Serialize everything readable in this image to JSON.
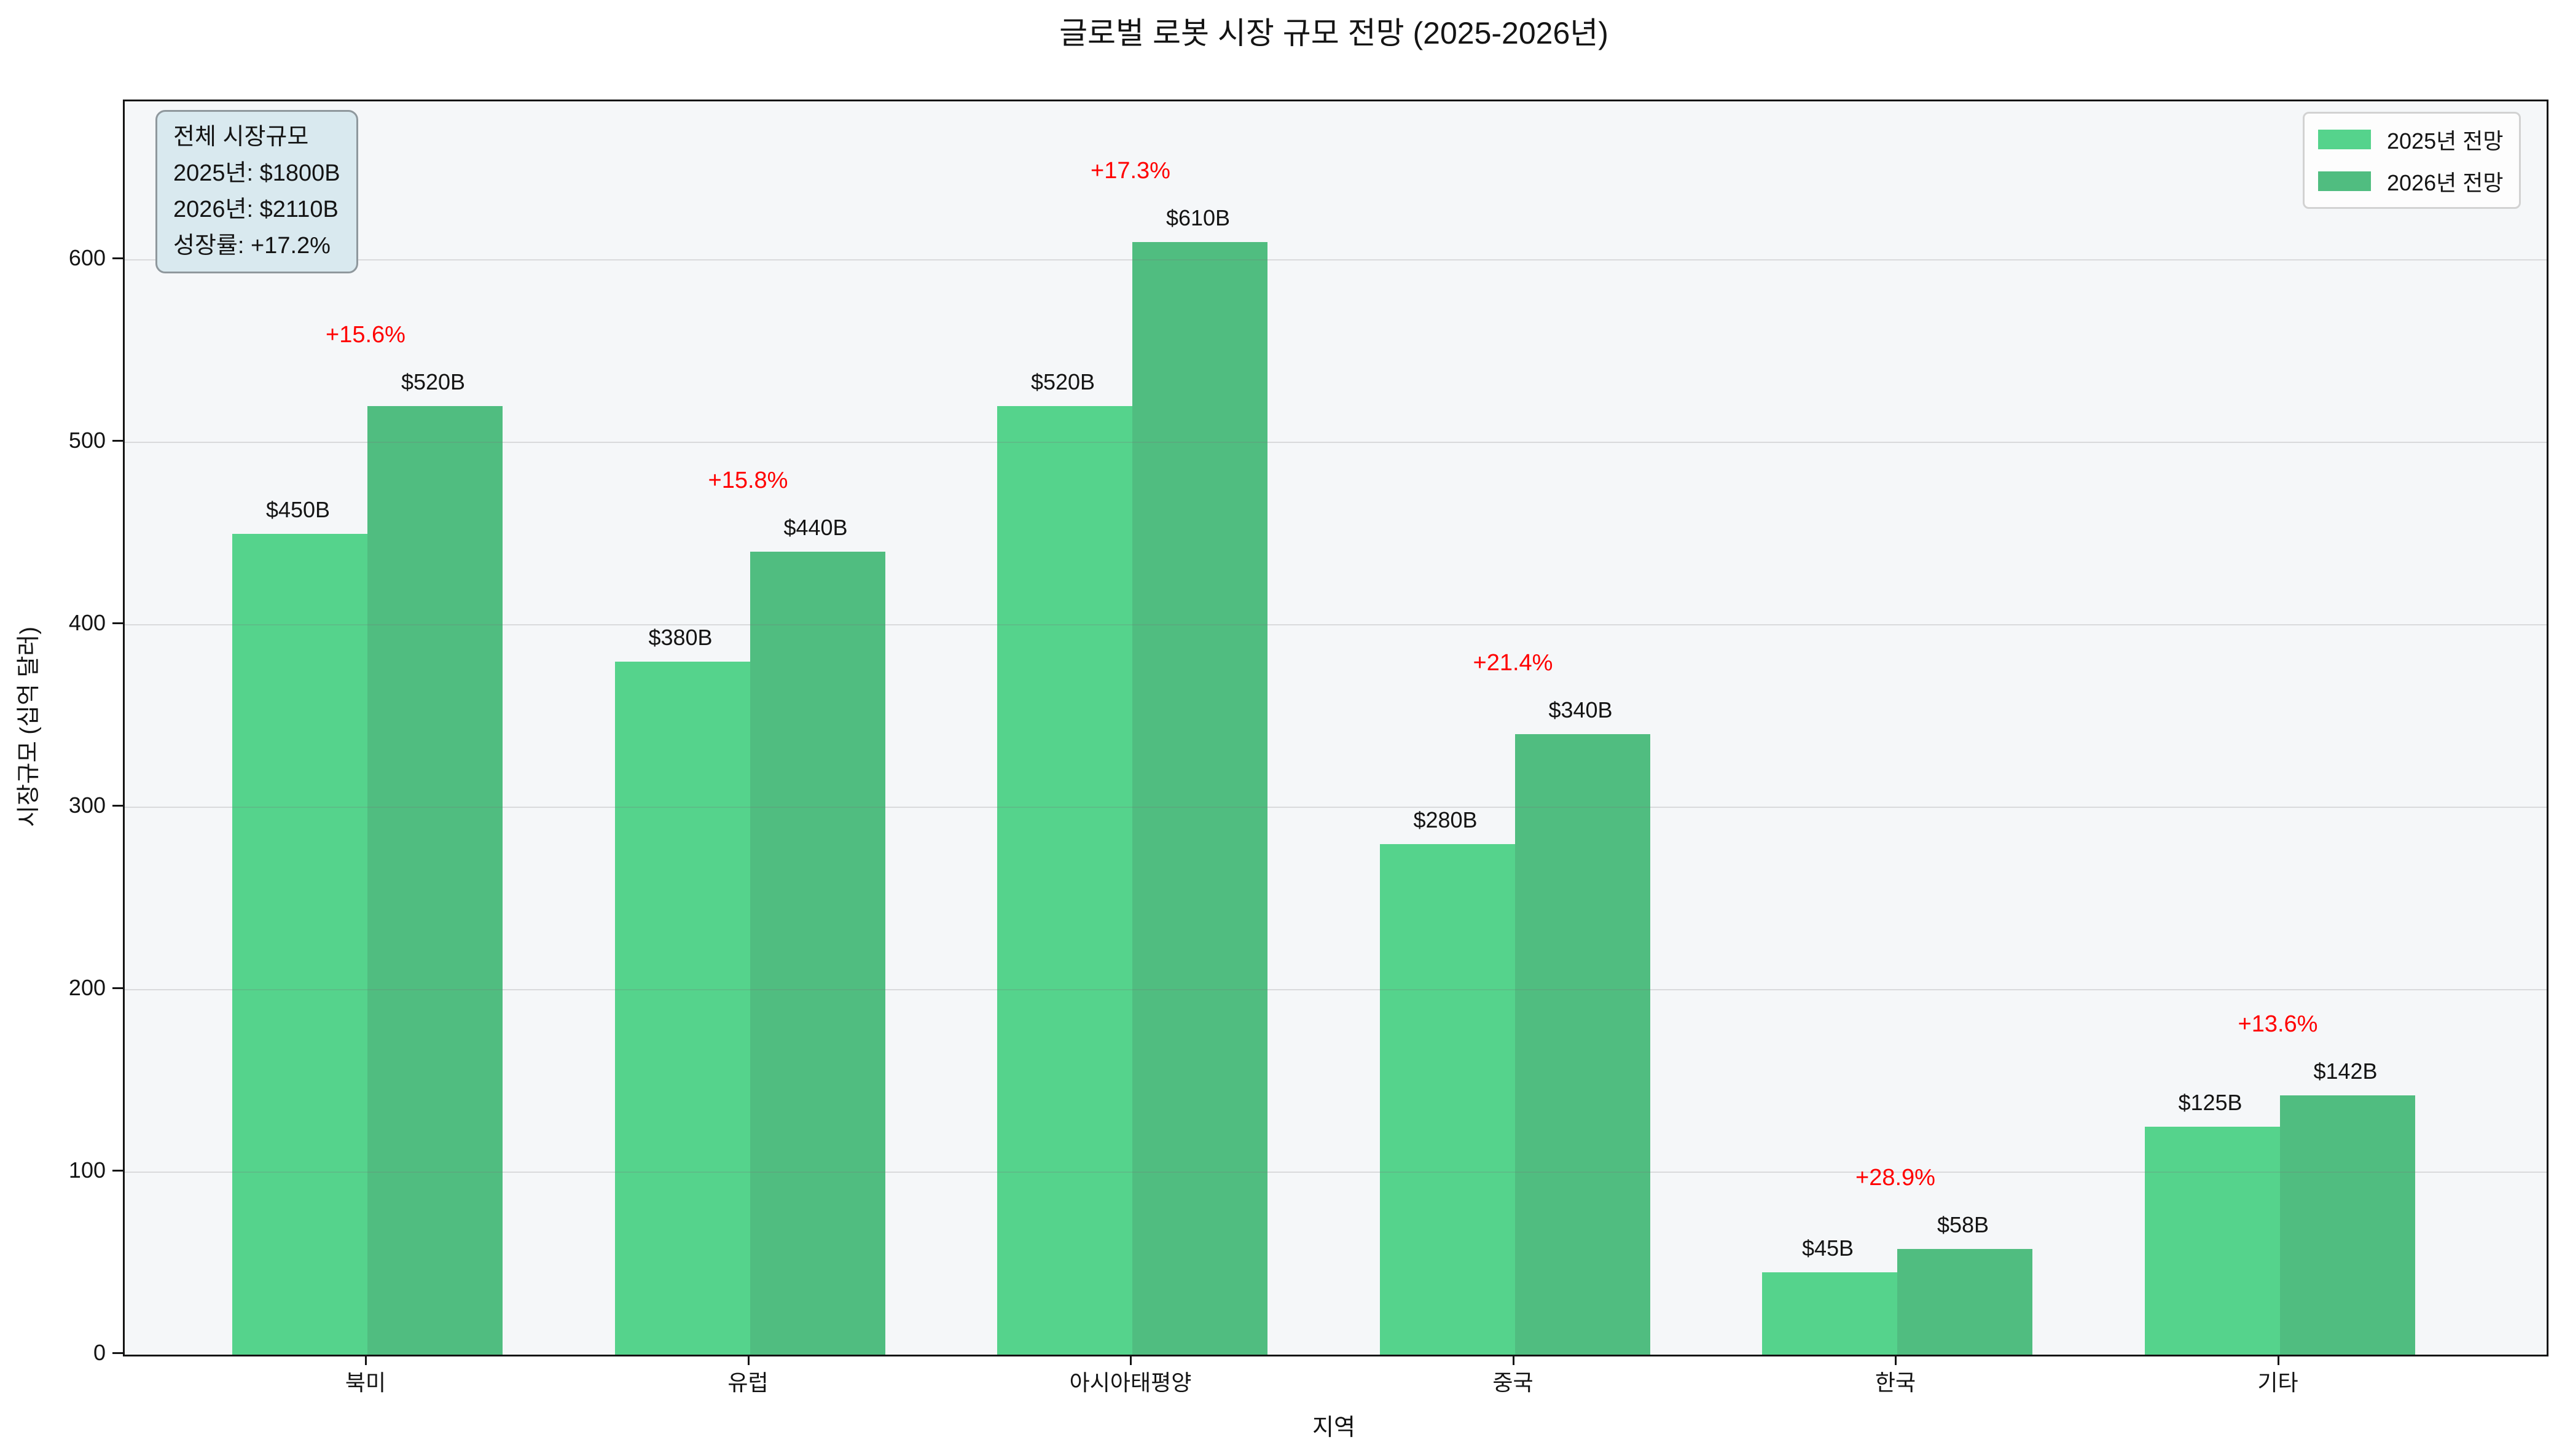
{
  "title": "글로벌 로봇 시장 규모 전망 (2025-2026년)",
  "chart_data": {
    "type": "bar",
    "title": "글로벌 로봇 시장 규모 전망 (2025-2026년)",
    "categories": [
      "북미",
      "유럽",
      "아시아태평양",
      "중국",
      "한국",
      "기타"
    ],
    "series": [
      {
        "name": "2025년 전망",
        "color": "#55d38c",
        "values": [
          450,
          380,
          520,
          280,
          45,
          125
        ],
        "labels": [
          "$450B",
          "$380B",
          "$520B",
          "$280B",
          "$45B",
          "$125B"
        ]
      },
      {
        "name": "2026년 전망",
        "color": "#50bd80",
        "values": [
          520,
          440,
          610,
          340,
          58,
          142
        ],
        "labels": [
          "$520B",
          "$440B",
          "$610B",
          "$340B",
          "$58B",
          "$142B"
        ]
      }
    ],
    "growth_labels": [
      "+15.6%",
      "+15.8%",
      "+17.3%",
      "+21.4%",
      "+28.9%",
      "+13.6%"
    ],
    "growth_color": "#ff0000",
    "xlabel": "지역",
    "ylabel": "시장규모 (십억 달러)",
    "yticks": [
      0,
      100,
      200,
      300,
      400,
      500,
      600
    ],
    "ylim": [
      0,
      687
    ],
    "grid": true,
    "legend_position": "upper right",
    "plot_bg": "#f5f7f9"
  },
  "info_box": {
    "bg": "#d9e9ef",
    "lines": [
      "전체 시장규모",
      "2025년: $1800B",
      "2026년: $2110B",
      "성장률: +17.2%"
    ]
  },
  "legend": {
    "items": [
      {
        "label": "2025년 전망",
        "color": "#55d38c"
      },
      {
        "label": "2026년 전망",
        "color": "#50bd80"
      }
    ]
  }
}
